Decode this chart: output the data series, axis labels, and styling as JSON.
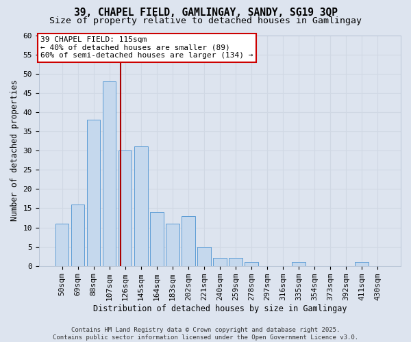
{
  "title_line1": "39, CHAPEL FIELD, GAMLINGAY, SANDY, SG19 3QP",
  "title_line2": "Size of property relative to detached houses in Gamlingay",
  "xlabel": "Distribution of detached houses by size in Gamlingay",
  "ylabel": "Number of detached properties",
  "categories": [
    "50sqm",
    "69sqm",
    "88sqm",
    "107sqm",
    "126sqm",
    "145sqm",
    "164sqm",
    "183sqm",
    "202sqm",
    "221sqm",
    "240sqm",
    "259sqm",
    "278sqm",
    "297sqm",
    "316sqm",
    "335sqm",
    "354sqm",
    "373sqm",
    "392sqm",
    "411sqm",
    "430sqm"
  ],
  "values": [
    11,
    16,
    38,
    48,
    30,
    31,
    14,
    11,
    13,
    5,
    2,
    2,
    1,
    0,
    0,
    1,
    0,
    0,
    0,
    1,
    0
  ],
  "bar_color": "#c5d8ed",
  "bar_edge_color": "#5b9bd5",
  "grid_color": "#d0d8e4",
  "background_color": "#dde4ef",
  "vline_x": 3.72,
  "vline_color": "#aa0000",
  "annotation_text": "39 CHAPEL FIELD: 115sqm\n← 40% of detached houses are smaller (89)\n60% of semi-detached houses are larger (134) →",
  "annotation_box_color": "#ffffff",
  "annotation_box_edge_color": "#cc0000",
  "ylim": [
    0,
    60
  ],
  "yticks": [
    0,
    5,
    10,
    15,
    20,
    25,
    30,
    35,
    40,
    45,
    50,
    55,
    60
  ],
  "footer_text": "Contains HM Land Registry data © Crown copyright and database right 2025.\nContains public sector information licensed under the Open Government Licence v3.0.",
  "title_fontsize": 10.5,
  "subtitle_fontsize": 9.5,
  "axis_fontsize": 8.5,
  "tick_fontsize": 8,
  "annot_fontsize": 8,
  "footer_fontsize": 6.5
}
